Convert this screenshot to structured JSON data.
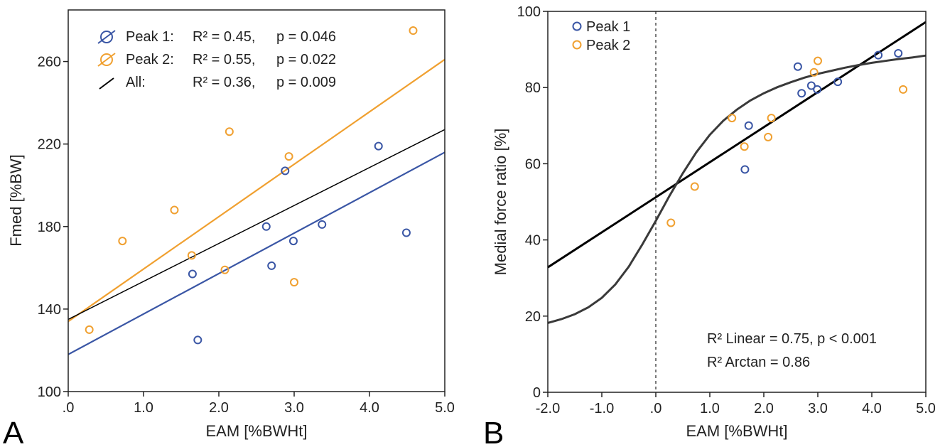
{
  "colors": {
    "peak1": "#3a56a5",
    "peak2": "#f0a030",
    "all": "#000000",
    "arctan": "#3a3a3a"
  },
  "chart_data": [
    {
      "type": "scatter",
      "panel_label": "A",
      "xlabel": "EAM [%BWHt]",
      "ylabel": "Fmed [%BW]",
      "xlim": [
        0,
        5
      ],
      "ylim": [
        100,
        285
      ],
      "xticks": [
        0,
        1,
        2,
        3,
        4,
        5
      ],
      "xtick_labels": [
        ".0",
        "1.0",
        "2.0",
        "3.0",
        "4.0",
        "5.0"
      ],
      "yticks": [
        100,
        140,
        180,
        220,
        260
      ],
      "ytick_labels": [
        "100",
        "140",
        "180",
        "220",
        "260"
      ],
      "legend_position": "top-left",
      "series": [
        {
          "name": "Peak 1",
          "color_key": "peak1",
          "points": [
            [
              1.65,
              157
            ],
            [
              1.72,
              125
            ],
            [
              2.63,
              180
            ],
            [
              2.7,
              161
            ],
            [
              2.88,
              207
            ],
            [
              2.99,
              173
            ],
            [
              3.37,
              181
            ],
            [
              4.12,
              219
            ],
            [
              4.49,
              177
            ]
          ]
        },
        {
          "name": "Peak 2",
          "color_key": "peak2",
          "points": [
            [
              0.28,
              130
            ],
            [
              0.72,
              173
            ],
            [
              1.41,
              188
            ],
            [
              1.64,
              166
            ],
            [
              2.08,
              159
            ],
            [
              2.14,
              226
            ],
            [
              2.93,
              214
            ],
            [
              3.0,
              153
            ],
            [
              4.58,
              275
            ]
          ]
        }
      ],
      "fit_lines": [
        {
          "name": "Peak 1",
          "color_key": "peak1",
          "x": [
            0,
            5
          ],
          "y": [
            118,
            216
          ]
        },
        {
          "name": "Peak 2",
          "color_key": "peak2",
          "x": [
            0,
            5
          ],
          "y": [
            134,
            261
          ]
        },
        {
          "name": "All",
          "color_key": "all",
          "x": [
            0,
            5
          ],
          "y": [
            135,
            227
          ]
        }
      ],
      "legend": [
        {
          "name": "Peak 1:",
          "r2": "R² = 0.45,",
          "p": "p = 0.046",
          "color_key": "peak1"
        },
        {
          "name": "Peak 2:",
          "r2": "R² = 0.55,",
          "p": "p = 0.022",
          "color_key": "peak2"
        },
        {
          "name": "All:",
          "r2": "R² = 0.36,",
          "p": "p = 0.009",
          "color_key": "all"
        }
      ]
    },
    {
      "type": "scatter",
      "panel_label": "B",
      "xlabel": "EAM [%BWHt]",
      "ylabel": "Medial force ratio [%]",
      "xlim": [
        -2,
        5
      ],
      "ylim": [
        0,
        100
      ],
      "xticks": [
        -2,
        -1,
        0,
        1,
        2,
        3,
        4,
        5
      ],
      "xtick_labels": [
        "-2.0",
        "-1.0",
        ".0",
        "1.0",
        "2.0",
        "3.0",
        "4.0",
        "5.0"
      ],
      "yticks": [
        0,
        20,
        40,
        60,
        80,
        100
      ],
      "ytick_labels": [
        "0",
        "20",
        "40",
        "60",
        "80",
        "100"
      ],
      "reference_line_x": 0,
      "legend_position": "top-left",
      "series": [
        {
          "name": "Peak 1",
          "color_key": "peak1",
          "points": [
            [
              1.65,
              58.5
            ],
            [
              1.72,
              70
            ],
            [
              2.63,
              85.5
            ],
            [
              2.7,
              78.5
            ],
            [
              2.88,
              80.5
            ],
            [
              2.99,
              79.5
            ],
            [
              3.37,
              81.5
            ],
            [
              4.12,
              88.5
            ],
            [
              4.49,
              89
            ]
          ]
        },
        {
          "name": "Peak 2",
          "color_key": "peak2",
          "points": [
            [
              0.28,
              44.5
            ],
            [
              0.72,
              54
            ],
            [
              1.41,
              72
            ],
            [
              1.64,
              64.5
            ],
            [
              2.08,
              67
            ],
            [
              2.14,
              72
            ],
            [
              2.93,
              84
            ],
            [
              3.0,
              87
            ],
            [
              4.58,
              79.5
            ]
          ]
        }
      ],
      "fit_lines": [
        {
          "name": "Linear",
          "color_key": "all",
          "x": [
            -2,
            5
          ],
          "y": [
            32.8,
            97.2
          ]
        }
      ],
      "arctan_curve": {
        "color_key": "arctan",
        "x": [
          -2.0,
          -1.75,
          -1.5,
          -1.25,
          -1.0,
          -0.75,
          -0.5,
          -0.25,
          0.0,
          0.25,
          0.5,
          0.75,
          1.0,
          1.25,
          1.5,
          1.75,
          2.0,
          2.25,
          2.5,
          2.75,
          3.0,
          3.25,
          3.5,
          3.75,
          4.0,
          4.25,
          4.5,
          4.75,
          5.0
        ],
        "y": [
          18.2,
          19.2,
          20.5,
          22.3,
          24.8,
          28.3,
          33.0,
          38.8,
          45.0,
          51.5,
          57.5,
          63.0,
          67.6,
          71.3,
          74.2,
          76.6,
          78.5,
          80.1,
          81.4,
          82.6,
          83.6,
          84.4,
          85.2,
          85.9,
          86.5,
          87.0,
          87.5,
          87.9,
          88.4
        ]
      },
      "legend": [
        {
          "name": "Peak 1",
          "color_key": "peak1"
        },
        {
          "name": "Peak 2",
          "color_key": "peak2"
        }
      ],
      "annotations": [
        "R² Linear = 0.75,  p < 0.001",
        "R² Arctan = 0.86"
      ]
    }
  ]
}
